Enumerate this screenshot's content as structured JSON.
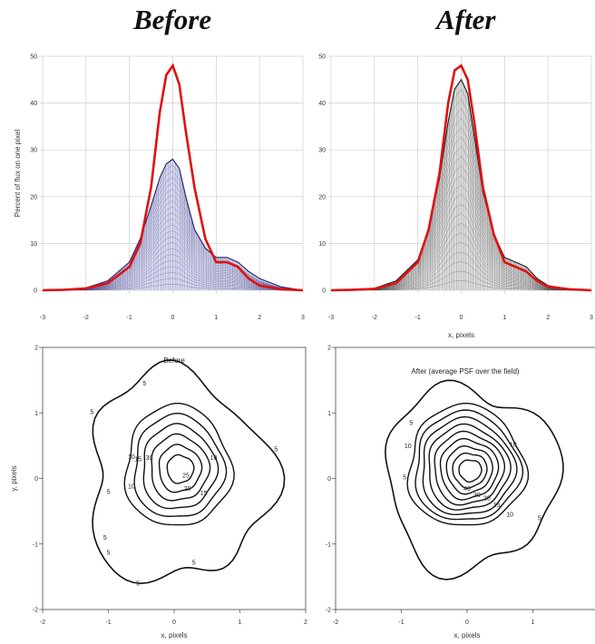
{
  "headings": {
    "before": "Before",
    "after": "After"
  },
  "chart_data": [
    {
      "type": "line",
      "id": "profile-before",
      "xlabel": "",
      "ylabel": "Percent of flux on one pixel",
      "xlim": [
        -3,
        3
      ],
      "ylim": [
        0,
        50
      ],
      "xticks": [
        "-3",
        "-2",
        "-1",
        "0",
        "1",
        "2",
        "3"
      ],
      "yticks": [
        "0",
        "10",
        "20",
        "30",
        "40",
        "50"
      ],
      "grid": true,
      "series": [
        {
          "color": "#e01010",
          "x": [
            -3,
            -2.5,
            -2,
            -1.5,
            -1,
            -0.75,
            -0.5,
            -0.3,
            -0.15,
            0,
            0.15,
            0.3,
            0.5,
            0.75,
            1,
            1.25,
            1.5,
            1.75,
            2,
            2.5,
            3
          ],
          "y": [
            0,
            0.1,
            0.4,
            1.5,
            5,
            10,
            22,
            38,
            46,
            48,
            44,
            34,
            22,
            11,
            6,
            6,
            5,
            2.5,
            1,
            0.2,
            0
          ]
        },
        {
          "color": "#2a2a70",
          "x": [
            -3,
            -2.5,
            -2,
            -1.5,
            -1,
            -0.75,
            -0.5,
            -0.3,
            -0.15,
            0,
            0.15,
            0.3,
            0.5,
            0.75,
            1,
            1.25,
            1.5,
            1.75,
            2,
            2.5,
            3
          ],
          "y": [
            0,
            0.1,
            0.5,
            2,
            6,
            11,
            18,
            24,
            27,
            28,
            26,
            20,
            13,
            9,
            7,
            7,
            6,
            4,
            2.5,
            0.7,
            0
          ]
        }
      ]
    },
    {
      "type": "line",
      "id": "profile-after",
      "xlabel": "x, pixels",
      "ylabel": "",
      "xlim": [
        -3,
        3
      ],
      "ylim": [
        0,
        50
      ],
      "xticks": [
        "-3",
        "-2",
        "-1",
        "0",
        "1",
        "2",
        "3"
      ],
      "yticks": [
        "0",
        "10",
        "20",
        "30",
        "40",
        "50"
      ],
      "grid": true,
      "series": [
        {
          "color": "#e01010",
          "x": [
            -3,
            -2.5,
            -2,
            -1.5,
            -1,
            -0.75,
            -0.5,
            -0.3,
            -0.15,
            0,
            0.15,
            0.3,
            0.5,
            0.75,
            1,
            1.25,
            1.5,
            1.75,
            2,
            2.5,
            3
          ],
          "y": [
            0,
            0.1,
            0.3,
            1.5,
            6,
            13,
            25,
            40,
            47,
            48,
            45,
            36,
            22,
            12,
            6,
            5,
            4,
            2,
            0.8,
            0.2,
            0
          ]
        },
        {
          "color": "#222222",
          "x": [
            -3,
            -2.5,
            -2,
            -1.5,
            -1,
            -0.75,
            -0.5,
            -0.3,
            -0.15,
            0,
            0.15,
            0.3,
            0.5,
            0.75,
            1,
            1.25,
            1.5,
            1.75,
            2,
            2.5,
            3
          ],
          "y": [
            0,
            0.1,
            0.4,
            2,
            6.5,
            13,
            24,
            36,
            43,
            45,
            42,
            33,
            21,
            12,
            7,
            6,
            5,
            2.5,
            1,
            0.2,
            0
          ]
        }
      ]
    },
    {
      "type": "contour",
      "id": "contour-before",
      "title": "Before",
      "xlabel": "x, pixels",
      "ylabel": "y, pixels",
      "xlim": [
        -2,
        2
      ],
      "ylim": [
        -2,
        2
      ],
      "xticks": [
        "-2",
        "-1",
        "0",
        "1",
        "2"
      ],
      "yticks": [
        "-2",
        "-1",
        "0",
        "1",
        "2"
      ],
      "contour_labels": [
        "5",
        "5",
        "5",
        "5",
        "5",
        "5",
        "5",
        "5",
        "10",
        "10",
        "10",
        "15",
        "15",
        "20",
        "25",
        "30"
      ]
    },
    {
      "type": "contour",
      "id": "contour-after",
      "title": "After (average PSF over the field)",
      "xlabel": "x, pixels",
      "ylabel": "",
      "xlim": [
        -2,
        2
      ],
      "ylim": [
        -2,
        2
      ],
      "xticks": [
        "-2",
        "-1",
        "0",
        "1",
        "2"
      ],
      "yticks": [
        "-2",
        "-1",
        "0",
        "1",
        "2"
      ],
      "contour_labels": [
        "5",
        "5",
        "5",
        "10",
        "10",
        "10",
        "15",
        "20",
        "30",
        "40"
      ]
    }
  ]
}
